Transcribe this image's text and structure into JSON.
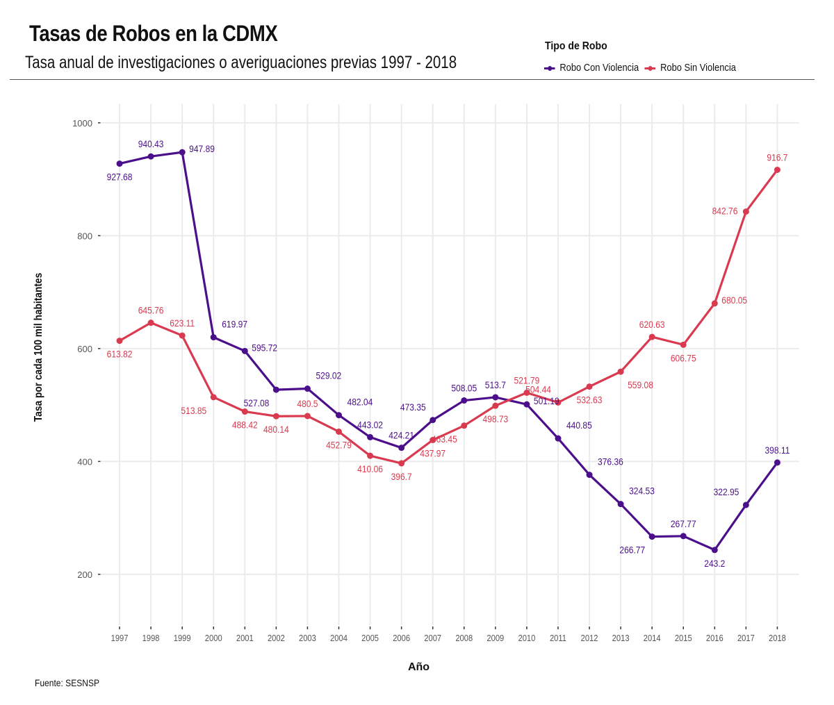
{
  "header": {
    "title": "Tasas de Robos en la CDMX",
    "subtitle": "Tasa anual de investigaciones o averiguaciones previas 1997 - 2018"
  },
  "legend": {
    "title": "Tipo de Robo",
    "items": [
      {
        "label": "Robo Con Violencia",
        "color": "#4b0f8c"
      },
      {
        "label": "Robo Sin Violencia",
        "color": "#d93a4f"
      }
    ]
  },
  "footer": {
    "source": "Fuente: SESNSP"
  },
  "colors": {
    "con_violencia": "#4b0f8c",
    "sin_violencia": "#d93a4f",
    "grid": "#ebebeb",
    "tick_text": "#555555"
  },
  "chart_data": {
    "type": "line",
    "title": "Tasas de Robos en la CDMX",
    "subtitle": "Tasa anual de investigaciones o averiguaciones previas 1997 - 2018",
    "xlabel": "Año",
    "ylabel": "Tasa por cada 100 mil habitantes",
    "x": [
      1997,
      1998,
      1999,
      2000,
      2001,
      2002,
      2003,
      2004,
      2005,
      2006,
      2007,
      2008,
      2009,
      2010,
      2011,
      2012,
      2013,
      2014,
      2015,
      2016,
      2017,
      2018
    ],
    "x_ticks": [
      "1997",
      "1998",
      "1999",
      "2000",
      "2001",
      "2002",
      "2003",
      "2004",
      "2005",
      "2006",
      "2007",
      "2008",
      "2009",
      "2010",
      "2011",
      "2012",
      "2013",
      "2014",
      "2015",
      "2016",
      "2017",
      "2018"
    ],
    "y_ticks": [
      200,
      400,
      600,
      800,
      1000
    ],
    "y_tick_labels": [
      "200",
      "400",
      "600",
      "800",
      "1000"
    ],
    "xlim": [
      1996.4,
      2018.7
    ],
    "ylim": [
      110,
      1033
    ],
    "grid": true,
    "legend_position": "top-right",
    "legend_title": "Tipo de Robo",
    "source": "Fuente: SESNSP",
    "series": [
      {
        "name": "Robo Con Violencia",
        "color": "#4b0f8c",
        "values": [
          927.68,
          940.43,
          947.89,
          619.97,
          595.72,
          527.08,
          529.02,
          482.04,
          443.02,
          424.21,
          473.35,
          508.05,
          513.7,
          501.19,
          440.85,
          376.36,
          324.53,
          266.77,
          267.77,
          243.2,
          322.95,
          398.11
        ],
        "labels": [
          "927.68",
          "940.43",
          "947.89",
          "619.97",
          "595.72",
          "527.08",
          "529.02",
          "482.04",
          "443.02",
          "424.21",
          "473.35",
          "508.05",
          "513.7",
          "501.19",
          "440.85",
          "376.36",
          "324.53",
          "266.77",
          "267.77",
          "243.2",
          "322.95",
          "398.11"
        ],
        "label_pos": [
          "below",
          "above",
          "right",
          "above-right",
          "right",
          "below-left",
          "above-right",
          "above-right",
          "above",
          "above",
          "above-left",
          "above",
          "above",
          "right",
          "above-right",
          "above-right",
          "above-right",
          "below-left",
          "above",
          "below",
          "above-left",
          "above"
        ]
      },
      {
        "name": "Robo Sin Violencia",
        "color": "#d93a4f",
        "values": [
          613.82,
          645.76,
          623.11,
          513.85,
          488.42,
          480.14,
          480.5,
          452.79,
          410.06,
          396.7,
          437.97,
          463.45,
          498.73,
          521.79,
          504.44,
          532.63,
          559.08,
          620.63,
          606.75,
          680.05,
          842.76,
          916.7
        ],
        "labels": [
          "613.82",
          "645.76",
          "623.11",
          "513.85",
          "488.42",
          "480.14",
          "480.5",
          "452.79",
          "410.06",
          "396.7",
          "437.97",
          "463.45",
          "498.73",
          "521.79",
          "504.44",
          "532.63",
          "559.08",
          "620.63",
          "606.75",
          "680.05",
          "842.76",
          "916.7"
        ],
        "label_pos": [
          "below",
          "above",
          "above",
          "below-left",
          "below",
          "below",
          "above",
          "below",
          "below",
          "below",
          "below",
          "below-left",
          "below",
          "above",
          "above-left",
          "below",
          "below-right",
          "above",
          "below",
          "right",
          "left",
          "above"
        ]
      }
    ]
  }
}
